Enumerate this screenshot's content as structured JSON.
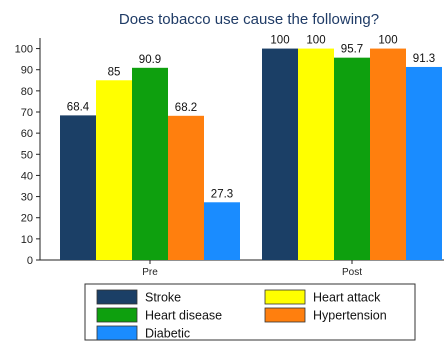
{
  "chart_data": {
    "type": "bar",
    "title": "Does tobacco use cause the following?",
    "categories": [
      "Pre",
      "Post"
    ],
    "series": [
      {
        "name": "Stroke",
        "color": "#1b3f66",
        "values": [
          68.4,
          100
        ]
      },
      {
        "name": "Heart attack",
        "color": "#ffff00",
        "values": [
          85,
          100
        ]
      },
      {
        "name": "Heart disease",
        "color": "#0ea00e",
        "values": [
          90.9,
          95.7
        ]
      },
      {
        "name": "Hypertension",
        "color": "#ff7f0e",
        "values": [
          68.2,
          100
        ]
      },
      {
        "name": "Diabetic",
        "color": "#1a8cff",
        "values": [
          27.3,
          91.3
        ]
      }
    ],
    "value_labels": [
      [
        "68.4",
        "100"
      ],
      [
        "85",
        "100"
      ],
      [
        "90.9",
        "95.7"
      ],
      [
        "68.2",
        "100"
      ],
      [
        "27.3",
        "91.3"
      ]
    ],
    "yticks": [
      "0",
      "10",
      "20",
      "30",
      "40",
      "50",
      "60",
      "70",
      "80",
      "90",
      "100"
    ],
    "ylim": [
      0,
      105
    ],
    "grid": false,
    "legend_position": "bottom"
  }
}
